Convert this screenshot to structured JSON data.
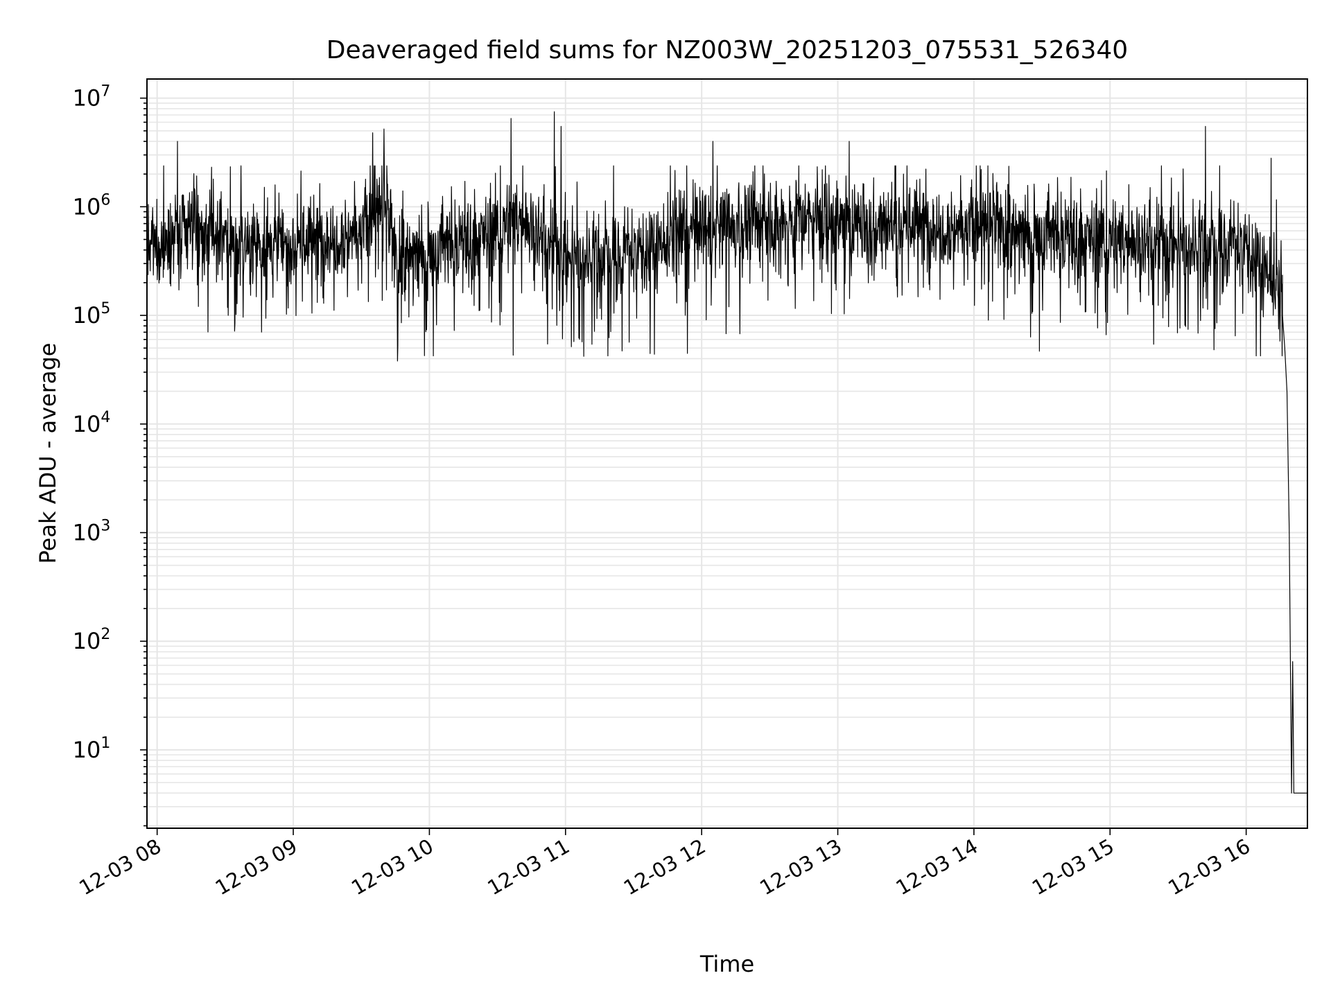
{
  "chart_data": {
    "type": "line",
    "title": "Deaveraged field sums for NZ003W_20251203_075531_526340",
    "xlabel": "Time",
    "ylabel": "Peak ADU - average",
    "xscale": "time",
    "yscale": "log",
    "xlim": [
      "2025-12-03 07:55:31",
      "2025-12-03 16:27:00"
    ],
    "ylim": [
      1.9,
      15000000
    ],
    "x_ticks": [
      {
        "value": "2025-12-03 08:00",
        "label": "12-03 08"
      },
      {
        "value": "2025-12-03 09:00",
        "label": "12-03 09"
      },
      {
        "value": "2025-12-03 10:00",
        "label": "12-03 10"
      },
      {
        "value": "2025-12-03 11:00",
        "label": "12-03 11"
      },
      {
        "value": "2025-12-03 12:00",
        "label": "12-03 12"
      },
      {
        "value": "2025-12-03 13:00",
        "label": "12-03 13"
      },
      {
        "value": "2025-12-03 14:00",
        "label": "12-03 14"
      },
      {
        "value": "2025-12-03 15:00",
        "label": "12-03 15"
      },
      {
        "value": "2025-12-03 16:00",
        "label": "12-03 16"
      }
    ],
    "y_ticks": [
      {
        "value": 10,
        "base": "10",
        "exp": "1"
      },
      {
        "value": 100,
        "base": "10",
        "exp": "2"
      },
      {
        "value": 1000,
        "base": "10",
        "exp": "3"
      },
      {
        "value": 10000,
        "base": "10",
        "exp": "4"
      },
      {
        "value": 100000,
        "base": "10",
        "exp": "5"
      },
      {
        "value": 1000000,
        "base": "10",
        "exp": "6"
      },
      {
        "value": 10000000,
        "base": "10",
        "exp": "7"
      }
    ],
    "grid": true,
    "minor_grid": true,
    "line_color": "#000000",
    "grid_color": "#e6e6e6",
    "series_profile": {
      "points": [
        {
          "x": "2025-12-03 07:55:31",
          "y": 400000
        },
        {
          "x": "2025-12-03 08:05",
          "y": 500000
        },
        {
          "x": "2025-12-03 08:15",
          "y": 650000
        },
        {
          "x": "2025-12-03 08:30",
          "y": 500000
        },
        {
          "x": "2025-12-03 09:00",
          "y": 450000
        },
        {
          "x": "2025-12-03 09:30",
          "y": 600000
        },
        {
          "x": "2025-12-03 09:40",
          "y": 1000000
        },
        {
          "x": "2025-12-03 09:45",
          "y": 350000
        },
        {
          "x": "2025-12-03 10:00",
          "y": 400000
        },
        {
          "x": "2025-12-03 10:30",
          "y": 600000
        },
        {
          "x": "2025-12-03 10:40",
          "y": 800000
        },
        {
          "x": "2025-12-03 11:00",
          "y": 350000
        },
        {
          "x": "2025-12-03 11:30",
          "y": 400000
        },
        {
          "x": "2025-12-03 12:00",
          "y": 600000
        },
        {
          "x": "2025-12-03 12:30",
          "y": 700000
        },
        {
          "x": "2025-12-03 13:00",
          "y": 750000
        },
        {
          "x": "2025-12-03 14:00",
          "y": 650000
        },
        {
          "x": "2025-12-03 15:00",
          "y": 500000
        },
        {
          "x": "2025-12-03 16:00",
          "y": 450000
        },
        {
          "x": "2025-12-03 16:13",
          "y": 200000
        },
        {
          "x": "2025-12-03 16:16",
          "y": 100000
        }
      ],
      "typical_range": [
        30000,
        3000000
      ],
      "spikes": [
        {
          "x": "2025-12-03 08:09",
          "y": 4000000
        },
        {
          "x": "2025-12-03 09:35",
          "y": 4800000
        },
        {
          "x": "2025-12-03 09:40",
          "y": 5200000
        },
        {
          "x": "2025-12-03 10:36",
          "y": 6500000
        },
        {
          "x": "2025-12-03 10:55",
          "y": 7500000
        },
        {
          "x": "2025-12-03 10:58",
          "y": 5500000
        },
        {
          "x": "2025-12-03 12:05",
          "y": 4000000
        },
        {
          "x": "2025-12-03 13:05",
          "y": 4000000
        },
        {
          "x": "2025-12-03 15:42",
          "y": 5500000
        },
        {
          "x": "2025-12-03 16:11",
          "y": 2800000
        }
      ],
      "dips": [
        {
          "x": "2025-12-03 09:46",
          "y": 38000
        },
        {
          "x": "2025-12-03 10:37",
          "y": 43000
        },
        {
          "x": "2025-12-03 11:08",
          "y": 42000
        },
        {
          "x": "2025-12-03 11:25",
          "y": 47000
        }
      ],
      "tail": [
        {
          "x": "2025-12-03 16:16",
          "y": 100000
        },
        {
          "x": "2025-12-03 16:17",
          "y": 50000
        },
        {
          "x": "2025-12-03 16:18",
          "y": 20000
        },
        {
          "x": "2025-12-03 16:19",
          "y": 1000
        },
        {
          "x": "2025-12-03 16:20",
          "y": 4
        },
        {
          "x": "2025-12-03 16:20:30",
          "y": 65
        },
        {
          "x": "2025-12-03 16:21",
          "y": 4
        },
        {
          "x": "2025-12-03 16:27",
          "y": 4
        }
      ]
    }
  }
}
